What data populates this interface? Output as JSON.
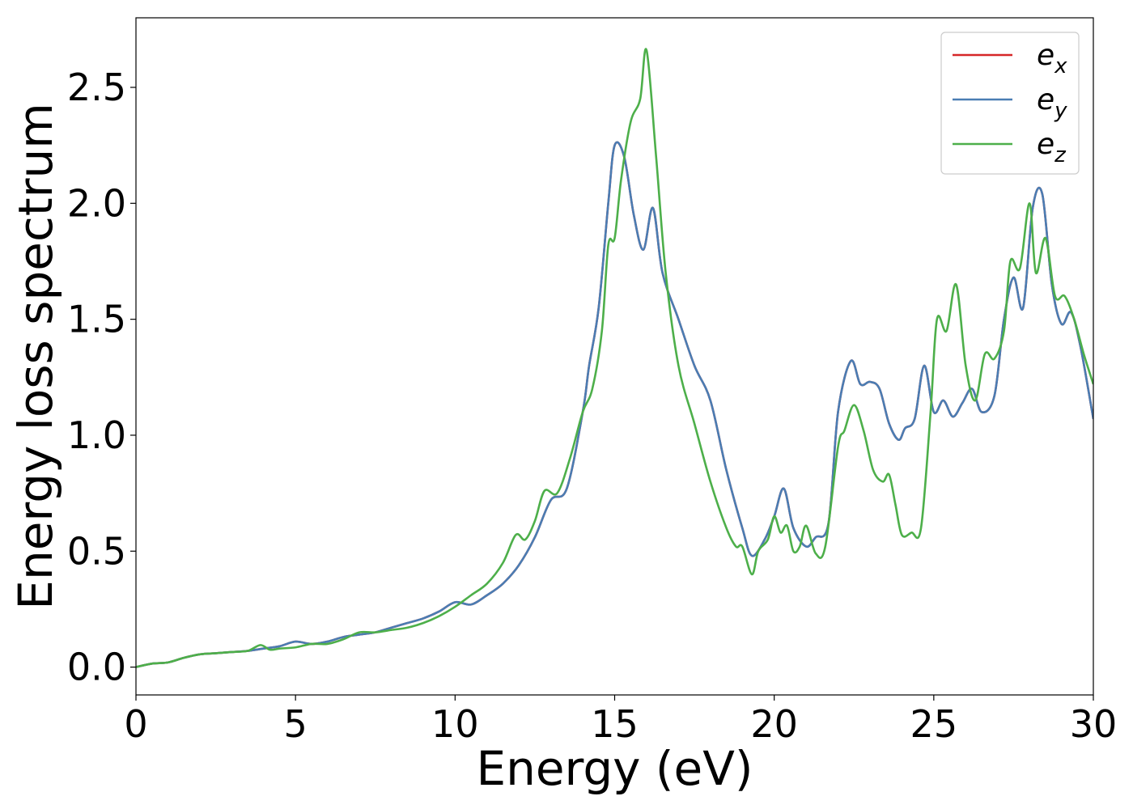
{
  "chart_data": {
    "type": "line",
    "title": "",
    "xlabel": "Energy (eV)",
    "ylabel": "Energy loss spectrum",
    "xlim": [
      0,
      30
    ],
    "ylim": [
      -0.12,
      2.8
    ],
    "xticks": [
      0,
      5,
      10,
      15,
      20,
      25,
      30
    ],
    "xtick_labels": [
      "0",
      "5",
      "10",
      "15",
      "20",
      "25",
      "30"
    ],
    "yticks": [
      0.0,
      0.5,
      1.0,
      1.5,
      2.0,
      2.5
    ],
    "ytick_labels": [
      "0.0",
      "0.5",
      "1.0",
      "1.5",
      "2.0",
      "2.5"
    ],
    "grid": false,
    "legend_position": "top-right",
    "series": [
      {
        "name": "e",
        "subscript": "x",
        "color": "#d62728",
        "x": [
          0,
          0.5,
          1,
          1.5,
          2,
          2.5,
          3,
          3.5,
          4,
          4.5,
          5,
          5.5,
          6,
          6.5,
          7,
          7.5,
          8,
          8.5,
          9,
          9.5,
          10,
          10.5,
          11,
          11.5,
          12,
          12.5,
          13,
          13.5,
          14,
          14.2,
          14.5,
          14.8,
          15,
          15.3,
          15.6,
          15.9,
          16.2,
          16.5,
          17,
          17.5,
          18,
          18.5,
          19,
          19.3,
          19.7,
          20,
          20.3,
          20.6,
          21,
          21.3,
          21.7,
          22,
          22.4,
          22.7,
          23,
          23.3,
          23.6,
          23.9,
          24.1,
          24.4,
          24.7,
          25,
          25.3,
          25.6,
          25.9,
          26.2,
          26.5,
          26.9,
          27.2,
          27.5,
          27.8,
          28.1,
          28.4,
          28.7,
          29,
          29.3,
          29.6,
          30
        ],
        "y": [
          0.0,
          0.015,
          0.02,
          0.04,
          0.055,
          0.06,
          0.065,
          0.07,
          0.08,
          0.09,
          0.11,
          0.1,
          0.11,
          0.13,
          0.14,
          0.15,
          0.17,
          0.19,
          0.21,
          0.24,
          0.28,
          0.27,
          0.31,
          0.36,
          0.44,
          0.56,
          0.72,
          0.77,
          1.1,
          1.3,
          1.55,
          2.0,
          2.25,
          2.2,
          1.95,
          1.8,
          1.98,
          1.7,
          1.5,
          1.3,
          1.15,
          0.85,
          0.6,
          0.48,
          0.55,
          0.65,
          0.77,
          0.6,
          0.52,
          0.56,
          0.62,
          1.1,
          1.32,
          1.22,
          1.23,
          1.2,
          1.05,
          0.98,
          1.03,
          1.07,
          1.3,
          1.1,
          1.15,
          1.08,
          1.14,
          1.2,
          1.1,
          1.17,
          1.5,
          1.68,
          1.55,
          1.98,
          2.04,
          1.65,
          1.48,
          1.53,
          1.38,
          1.07
        ]
      },
      {
        "name": "e",
        "subscript": "y",
        "color": "#4a7db3",
        "x": [
          0,
          0.5,
          1,
          1.5,
          2,
          2.5,
          3,
          3.5,
          4,
          4.5,
          5,
          5.5,
          6,
          6.5,
          7,
          7.5,
          8,
          8.5,
          9,
          9.5,
          10,
          10.5,
          11,
          11.5,
          12,
          12.5,
          13,
          13.5,
          14,
          14.2,
          14.5,
          14.8,
          15,
          15.3,
          15.6,
          15.9,
          16.2,
          16.5,
          17,
          17.5,
          18,
          18.5,
          19,
          19.3,
          19.7,
          20,
          20.3,
          20.6,
          21,
          21.3,
          21.7,
          22,
          22.4,
          22.7,
          23,
          23.3,
          23.6,
          23.9,
          24.1,
          24.4,
          24.7,
          25,
          25.3,
          25.6,
          25.9,
          26.2,
          26.5,
          26.9,
          27.2,
          27.5,
          27.8,
          28.1,
          28.4,
          28.7,
          29,
          29.3,
          29.6,
          30
        ],
        "y": [
          0.0,
          0.015,
          0.02,
          0.04,
          0.055,
          0.06,
          0.065,
          0.07,
          0.08,
          0.09,
          0.11,
          0.1,
          0.11,
          0.13,
          0.14,
          0.15,
          0.17,
          0.19,
          0.21,
          0.24,
          0.28,
          0.27,
          0.31,
          0.36,
          0.44,
          0.56,
          0.72,
          0.77,
          1.1,
          1.3,
          1.55,
          2.0,
          2.25,
          2.2,
          1.95,
          1.8,
          1.98,
          1.7,
          1.5,
          1.3,
          1.15,
          0.85,
          0.6,
          0.48,
          0.55,
          0.65,
          0.77,
          0.6,
          0.52,
          0.56,
          0.62,
          1.1,
          1.32,
          1.22,
          1.23,
          1.2,
          1.05,
          0.98,
          1.03,
          1.07,
          1.3,
          1.1,
          1.15,
          1.08,
          1.14,
          1.2,
          1.1,
          1.17,
          1.5,
          1.68,
          1.55,
          1.98,
          2.04,
          1.65,
          1.48,
          1.53,
          1.38,
          1.07
        ]
      },
      {
        "name": "e",
        "subscript": "z",
        "color": "#4daf4a",
        "x": [
          0,
          0.5,
          1,
          1.5,
          2,
          2.5,
          3,
          3.5,
          3.9,
          4.2,
          4.5,
          5,
          5.5,
          6,
          6.5,
          7,
          7.5,
          8,
          8.5,
          9,
          9.5,
          10,
          10.5,
          11,
          11.5,
          11.9,
          12.2,
          12.5,
          12.8,
          13.2,
          13.6,
          14,
          14.3,
          14.6,
          14.8,
          15,
          15.2,
          15.5,
          15.8,
          16,
          16.3,
          16.6,
          17,
          17.5,
          18,
          18.5,
          18.8,
          19,
          19.3,
          19.5,
          19.8,
          20,
          20.2,
          20.4,
          20.6,
          20.8,
          21,
          21.3,
          21.6,
          22,
          22.2,
          22.5,
          22.8,
          23.1,
          23.4,
          23.6,
          23.8,
          24,
          24.3,
          24.6,
          24.9,
          25.1,
          25.4,
          25.7,
          26,
          26.3,
          26.6,
          26.9,
          27.2,
          27.4,
          27.7,
          28,
          28.2,
          28.5,
          28.8,
          29.1,
          29.4,
          29.7,
          30
        ],
        "y": [
          0.0,
          0.015,
          0.02,
          0.04,
          0.055,
          0.06,
          0.065,
          0.07,
          0.095,
          0.075,
          0.08,
          0.085,
          0.1,
          0.1,
          0.12,
          0.15,
          0.15,
          0.16,
          0.17,
          0.19,
          0.22,
          0.26,
          0.31,
          0.36,
          0.45,
          0.57,
          0.55,
          0.63,
          0.76,
          0.75,
          0.9,
          1.1,
          1.2,
          1.45,
          1.82,
          1.85,
          2.1,
          2.35,
          2.45,
          2.66,
          2.2,
          1.7,
          1.3,
          1.05,
          0.8,
          0.6,
          0.52,
          0.52,
          0.4,
          0.5,
          0.55,
          0.65,
          0.58,
          0.61,
          0.5,
          0.52,
          0.61,
          0.49,
          0.52,
          0.95,
          1.02,
          1.13,
          1.02,
          0.85,
          0.8,
          0.83,
          0.7,
          0.57,
          0.58,
          0.6,
          1.1,
          1.5,
          1.45,
          1.65,
          1.3,
          1.15,
          1.35,
          1.33,
          1.45,
          1.75,
          1.72,
          2.0,
          1.7,
          1.85,
          1.6,
          1.6,
          1.5,
          1.35,
          1.22
        ]
      }
    ]
  }
}
